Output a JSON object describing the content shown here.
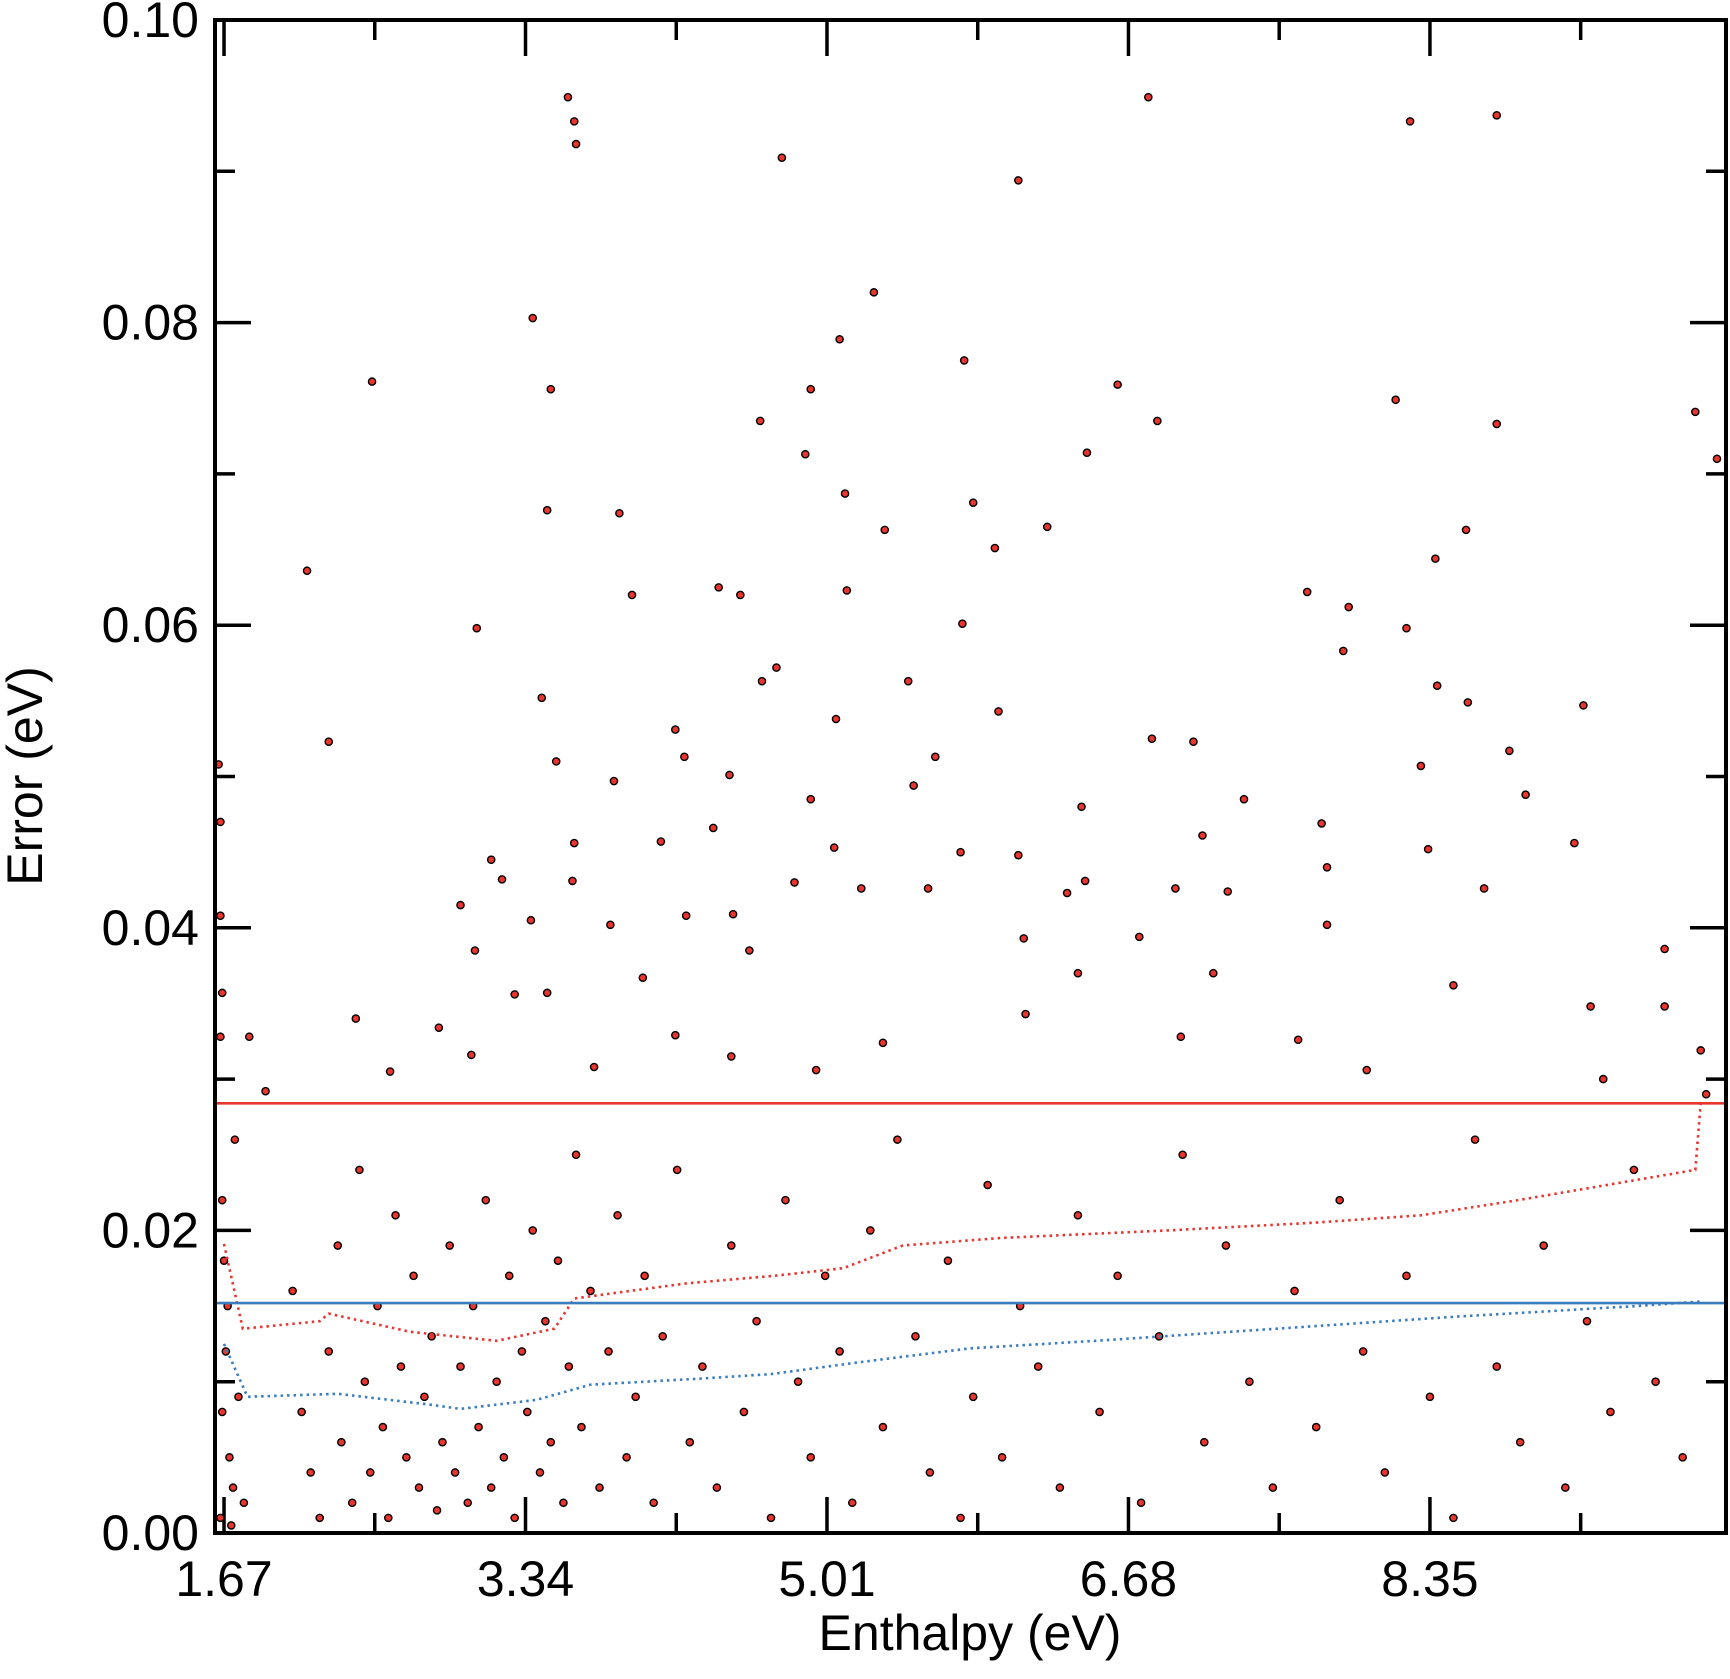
{
  "chart_data": {
    "type": "scatter",
    "xlabel": "Enthalpy (eV)",
    "ylabel": "Error (eV)",
    "xlim": [
      1.62,
      9.99
    ],
    "ylim": [
      0,
      0.1
    ],
    "xticks": [
      1.67,
      3.34,
      5.01,
      6.68,
      8.35
    ],
    "xminorticks": [
      2.505,
      4.175,
      5.845,
      7.515,
      9.185
    ],
    "yticks": [
      {
        "value": 0,
        "label": "0.00"
      },
      0.02,
      0.04,
      0.06,
      0.08,
      {
        "value": 0.1,
        "label": "0.10"
      }
    ],
    "yminorticks": [
      0.01,
      0.03,
      0.05,
      0.07,
      0.09
    ],
    "series": [
      {
        "type": "scatter",
        "color": "#e8352e",
        "edge": "#000000",
        "x": [
          3.575,
          3.61,
          3.62,
          4.76,
          6.79,
          8.24,
          8.72,
          6.07,
          3.38,
          5.27,
          2.49,
          3.48,
          5.08,
          4.92,
          5.77,
          6.62,
          8.16,
          8.72,
          9.82,
          9.94,
          4.64,
          4.89,
          6.45,
          6.84,
          2.13,
          3.46,
          3.86,
          5.11,
          5.82,
          6.23,
          5.33,
          8.55,
          8.38,
          5.94,
          3.07,
          3.93,
          4.41,
          4.53,
          5.12,
          5.76,
          7.67,
          7.9,
          8.22,
          7.87,
          2.25,
          3.43,
          4.73,
          4.65,
          5.46,
          5.96,
          8.39,
          8.56,
          9.2,
          4.17,
          4.22,
          5.06,
          5.61,
          6.81,
          7.04,
          8.3,
          8.79,
          8.88,
          1.64,
          3.51,
          3.83,
          4.47,
          4.92,
          5.49,
          6.42,
          7.32,
          9.15,
          7.75,
          7.09,
          3.15,
          3.21,
          4.09,
          4.38,
          5.05,
          5.75,
          6.07,
          7.78,
          8.34,
          2.98,
          3.61,
          3.6,
          4.23,
          4.49,
          4.83,
          5.2,
          5.57,
          6.34,
          6.44,
          6.94,
          7.23,
          8.65,
          7.78,
          6.74,
          6.1,
          9.65,
          3.06,
          3.37,
          3.81,
          4.58,
          3.99,
          3.28,
          3.46,
          6.4,
          7.15,
          8.48,
          9.65,
          9.24,
          2.4,
          2.86,
          4.17,
          5.32,
          6.11,
          6.97,
          7.62,
          9.85,
          2.59,
          3.04,
          3.72,
          4.48,
          4.95,
          8.0,
          9.31,
          1.65,
          1.66,
          1.65,
          1.65,
          1.81,
          1.9,
          1.66,
          1.67,
          1.68,
          1.66,
          1.7,
          1.72,
          1.65,
          1.75,
          1.69,
          1.73,
          1.78,
          1.71,
          2.05,
          2.1,
          2.15,
          2.2,
          2.25,
          2.3,
          2.32,
          2.38,
          2.42,
          2.45,
          2.48,
          2.52,
          2.55,
          2.58,
          2.62,
          2.65,
          2.68,
          2.72,
          2.75,
          2.78,
          2.82,
          2.85,
          2.88,
          2.92,
          2.95,
          2.98,
          3.02,
          3.05,
          3.08,
          3.12,
          3.15,
          3.18,
          3.22,
          3.25,
          3.28,
          3.32,
          3.35,
          3.38,
          3.42,
          3.45,
          3.48,
          3.52,
          3.55,
          3.58,
          3.62,
          3.65,
          3.7,
          3.75,
          3.8,
          3.85,
          3.9,
          3.95,
          4.0,
          4.05,
          4.1,
          4.18,
          4.25,
          4.32,
          4.4,
          4.48,
          4.55,
          4.62,
          4.7,
          4.78,
          4.85,
          4.92,
          5.0,
          5.08,
          5.15,
          5.25,
          5.32,
          5.4,
          5.5,
          5.58,
          5.68,
          5.75,
          5.82,
          5.9,
          5.98,
          6.08,
          6.18,
          6.3,
          6.4,
          6.52,
          6.62,
          6.75,
          6.85,
          6.98,
          7.1,
          7.22,
          7.35,
          7.48,
          7.6,
          7.72,
          7.85,
          7.98,
          8.1,
          8.22,
          8.35,
          8.48,
          8.6,
          8.72,
          8.85,
          8.98,
          9.1,
          9.22,
          9.35,
          9.48,
          9.6,
          9.75,
          9.88
        ],
        "values": [
          0.0949,
          0.0933,
          0.0918,
          0.0909,
          0.0949,
          0.0933,
          0.0937,
          0.0894,
          0.0803,
          0.082,
          0.0761,
          0.0756,
          0.0789,
          0.0756,
          0.0775,
          0.0759,
          0.0749,
          0.0733,
          0.0741,
          0.071,
          0.0735,
          0.0713,
          0.0714,
          0.0735,
          0.0636,
          0.0676,
          0.0674,
          0.0687,
          0.0681,
          0.0665,
          0.0663,
          0.0663,
          0.0644,
          0.0651,
          0.0598,
          0.062,
          0.0625,
          0.062,
          0.0623,
          0.0601,
          0.0622,
          0.0612,
          0.0598,
          0.0583,
          0.0523,
          0.0552,
          0.0572,
          0.0563,
          0.0563,
          0.0543,
          0.056,
          0.0549,
          0.0547,
          0.0531,
          0.0513,
          0.0538,
          0.0513,
          0.0525,
          0.0523,
          0.0507,
          0.0517,
          0.0488,
          0.0508,
          0.051,
          0.0497,
          0.0501,
          0.0485,
          0.0494,
          0.048,
          0.0485,
          0.0456,
          0.0469,
          0.0461,
          0.0445,
          0.0432,
          0.0457,
          0.0466,
          0.0453,
          0.045,
          0.0448,
          0.044,
          0.0452,
          0.0415,
          0.0456,
          0.0431,
          0.0408,
          0.0409,
          0.043,
          0.0426,
          0.0426,
          0.0423,
          0.0431,
          0.0426,
          0.0424,
          0.0426,
          0.0402,
          0.0394,
          0.0393,
          0.0386,
          0.0385,
          0.0405,
          0.0402,
          0.0385,
          0.0367,
          0.0356,
          0.0357,
          0.037,
          0.037,
          0.0362,
          0.0348,
          0.0348,
          0.034,
          0.0334,
          0.0329,
          0.0324,
          0.0343,
          0.0328,
          0.0326,
          0.0319,
          0.0305,
          0.0316,
          0.0308,
          0.0315,
          0.0306,
          0.0306,
          0.03,
          0.0328,
          0.0357,
          0.0408,
          0.047,
          0.0328,
          0.0292,
          0.022,
          0.018,
          0.012,
          0.008,
          0.005,
          0.003,
          0.001,
          0.009,
          0.015,
          0.026,
          0.002,
          0.0005,
          0.016,
          0.008,
          0.004,
          0.001,
          0.012,
          0.019,
          0.006,
          0.002,
          0.024,
          0.01,
          0.004,
          0.015,
          0.007,
          0.001,
          0.021,
          0.011,
          0.005,
          0.017,
          0.003,
          0.009,
          0.013,
          0.0015,
          0.006,
          0.019,
          0.004,
          0.011,
          0.002,
          0.015,
          0.007,
          0.022,
          0.003,
          0.01,
          0.005,
          0.017,
          0.001,
          0.012,
          0.008,
          0.02,
          0.004,
          0.014,
          0.006,
          0.018,
          0.002,
          0.011,
          0.025,
          0.007,
          0.016,
          0.003,
          0.012,
          0.021,
          0.005,
          0.009,
          0.017,
          0.002,
          0.013,
          0.024,
          0.006,
          0.011,
          0.003,
          0.019,
          0.008,
          0.014,
          0.001,
          0.022,
          0.01,
          0.005,
          0.017,
          0.012,
          0.002,
          0.02,
          0.007,
          0.026,
          0.013,
          0.004,
          0.018,
          0.001,
          0.009,
          0.023,
          0.005,
          0.015,
          0.011,
          0.003,
          0.021,
          0.008,
          0.017,
          0.002,
          0.013,
          0.025,
          0.006,
          0.019,
          0.01,
          0.003,
          0.016,
          0.007,
          0.022,
          0.012,
          0.004,
          0.017,
          0.009,
          0.001,
          0.026,
          0.011,
          0.006,
          0.019,
          0.003,
          0.014,
          0.008,
          0.024,
          0.01,
          0.005,
          0.029
        ]
      },
      {
        "type": "line",
        "style": "dotted",
        "color": "#e8352e",
        "x": [
          1.67,
          1.774,
          2.2,
          2.25,
          2.7,
          3.18,
          3.5,
          3.61,
          4.23,
          4.72,
          5.1,
          5.43,
          5.97,
          6.9,
          7.7,
          8.3,
          8.84,
          9.82,
          9.85
        ],
        "values": [
          0.0191,
          0.0135,
          0.014,
          0.0145,
          0.0133,
          0.0127,
          0.0135,
          0.0155,
          0.0165,
          0.017,
          0.0175,
          0.019,
          0.0195,
          0.02,
          0.0205,
          0.021,
          0.022,
          0.024,
          0.0284
        ]
      },
      {
        "type": "line",
        "style": "dotted",
        "color": "#3a7dbf",
        "x": [
          1.67,
          1.8,
          2.3,
          2.8,
          2.98,
          3.4,
          3.7,
          4.3,
          4.7,
          5.2,
          5.8,
          6.5,
          7.5,
          8.5,
          9.5,
          9.85
        ],
        "values": [
          0.0125,
          0.009,
          0.0092,
          0.0085,
          0.0082,
          0.0088,
          0.0098,
          0.0102,
          0.0105,
          0.0113,
          0.0122,
          0.0127,
          0.0135,
          0.0143,
          0.015,
          0.0153
        ]
      },
      {
        "type": "hline",
        "color": "#e8352e",
        "values": [
          0.0284
        ]
      },
      {
        "type": "hline",
        "color": "#3a7dbf",
        "values": [
          0.0152
        ]
      }
    ]
  }
}
